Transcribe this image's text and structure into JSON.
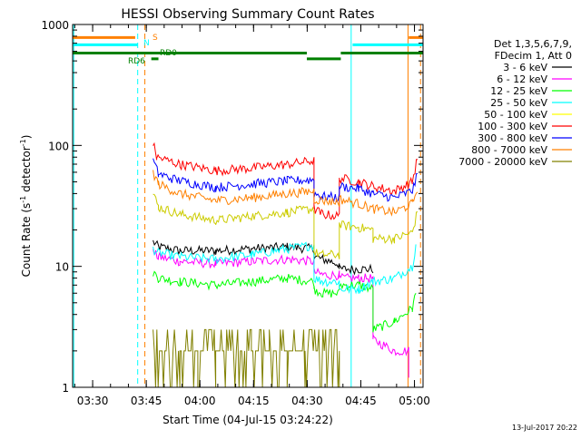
{
  "chart_data": {
    "type": "line",
    "title": "HESSI Observing Summary Count Rates",
    "xlabel": "Start Time (04-Jul-15 03:24:22)",
    "ylabel_main": "Count Rate (s",
    "ylabel_sup1": "-1",
    "ylabel_mid": " detector",
    "ylabel_sup2": "-1",
    "ylabel_end": ")",
    "footer_date": "13-Jul-2017 20:22",
    "y_scale": "log",
    "ylim": [
      1,
      1000
    ],
    "xlim_minutes": [
      0,
      98
    ],
    "x_ticks": [
      {
        "label": "03:30",
        "minute": 5.6
      },
      {
        "label": "03:45",
        "minute": 20.6
      },
      {
        "label": "04:00",
        "minute": 35.6
      },
      {
        "label": "04:15",
        "minute": 50.6
      },
      {
        "label": "04:30",
        "minute": 65.6
      },
      {
        "label": "04:45",
        "minute": 80.6
      },
      {
        "label": "05:00",
        "minute": 95.6
      }
    ],
    "y_ticks": [
      {
        "label": "1",
        "value": 1
      },
      {
        "label": "10",
        "value": 10
      },
      {
        "label": "100",
        "value": 100
      },
      {
        "label": "1000",
        "value": 1000
      }
    ],
    "legend": {
      "header": [
        "Det 1,3,5,6,7,9,",
        "FDecim 1, Att 0"
      ],
      "placement": "right"
    },
    "series": [
      {
        "name": "3 - 6 keV",
        "color": "#000000",
        "x": [
          22.5,
          24,
          30,
          40,
          50,
          60,
          67.5,
          67.5,
          70,
          72,
          74.6,
          74.6,
          80,
          84
        ],
        "y": [
          16,
          14.5,
          13.5,
          13.5,
          14,
          14.5,
          14,
          12,
          11.5,
          11,
          10.5,
          9.5,
          9.5,
          9.5
        ]
      },
      {
        "name": "6 - 12 keV",
        "color": "#ff00ff",
        "x": [
          22.5,
          24,
          30,
          40,
          50,
          60,
          67.5,
          67.5,
          70,
          74.6,
          74.6,
          80,
          84,
          84,
          90,
          94,
          94
        ],
        "y": [
          13,
          12,
          11,
          10.5,
          11,
          11.5,
          11,
          9,
          8.5,
          8.5,
          8,
          8,
          8,
          2.5,
          2,
          2,
          1.2
        ]
      },
      {
        "name": "12 - 25 keV",
        "color": "#00ff00",
        "x": [
          22.5,
          24,
          30,
          40,
          50,
          60,
          67.5,
          67.5,
          70,
          74.6,
          74.6,
          80,
          84,
          84,
          90,
          95,
          96
        ],
        "y": [
          9,
          8,
          7.5,
          7,
          7.5,
          8,
          7.5,
          6.5,
          6,
          6,
          7,
          7,
          6.5,
          3,
          3.5,
          4.5,
          6
        ]
      },
      {
        "name": "25 - 50 keV",
        "color": "#00ffff",
        "x": [
          22.5,
          24,
          30,
          40,
          50,
          60,
          67.5,
          67.5,
          70,
          74.6,
          74.6,
          80,
          84,
          90,
          95,
          96
        ],
        "y": [
          14,
          13,
          12,
          11.5,
          12.5,
          14,
          15,
          8,
          7.5,
          7.5,
          6.5,
          6.5,
          7.5,
          8,
          10,
          15
        ]
      },
      {
        "name": "50 - 100 keV",
        "color": "#ffff00",
        "draw_color": "#cccc00",
        "x": [
          22.5,
          24,
          30,
          40,
          50,
          60,
          67.5,
          67.5,
          70,
          74.6,
          74.6,
          80,
          84,
          84,
          90,
          95,
          96.5
        ],
        "y": [
          40,
          31,
          27,
          24,
          26,
          28,
          30,
          13,
          12.5,
          12.5,
          22,
          21,
          20,
          17,
          17,
          19,
          29
        ]
      },
      {
        "name": "100 - 300 keV",
        "color": "#ff0000",
        "x": [
          22.5,
          23.5,
          30,
          40,
          50,
          60,
          67.5,
          67.5,
          70,
          74.6,
          74.6,
          80,
          84,
          90,
          95,
          96.5
        ],
        "y": [
          105,
          80,
          70,
          62,
          65,
          70,
          75,
          30,
          27,
          26,
          54,
          50,
          46,
          42,
          50,
          80
        ]
      },
      {
        "name": "300 - 800 keV",
        "color": "#0000ff",
        "x": [
          22.5,
          24,
          30,
          40,
          50,
          60,
          67.5,
          67.5,
          70,
          74.6,
          74.6,
          80,
          84,
          90,
          95,
          96.5
        ],
        "y": [
          75,
          58,
          51,
          45,
          48,
          51,
          52,
          40,
          38,
          37,
          46,
          44,
          40,
          37,
          42,
          58
        ]
      },
      {
        "name": "800 - 7000 keV",
        "color": "#ff8000",
        "x": [
          22.5,
          24,
          30,
          40,
          50,
          60,
          67.5,
          67.5,
          70,
          74.6,
          74.6,
          80,
          84,
          90,
          95,
          96.5
        ],
        "y": [
          60,
          48,
          40,
          35,
          37,
          40,
          42,
          36,
          35,
          34,
          36,
          33,
          30,
          28,
          33,
          45
        ]
      },
      {
        "name": "7000 - 20000 keV",
        "color": "#808000",
        "x": [
          22.5,
          25,
          30,
          35,
          40,
          50,
          55,
          60,
          65,
          70,
          74.6,
          74.6
        ],
        "y": [
          4,
          3,
          2,
          2,
          2,
          2,
          3,
          3,
          3,
          2,
          2,
          1
        ]
      }
    ],
    "flag_bars": [
      {
        "label": "S",
        "color": "#ff8000",
        "value": 780,
        "segments": [
          [
            0,
            17.5
          ],
          [
            94,
            98
          ]
        ]
      },
      {
        "label": "N",
        "color": "#00ffff",
        "value": 680,
        "segments": [
          [
            0,
            18.2
          ],
          [
            78.3,
            98
          ]
        ]
      },
      {
        "label": "RD0",
        "color": "#008000",
        "value": 580,
        "segments": [
          [
            0,
            65.5
          ],
          [
            75,
            98
          ]
        ]
      },
      {
        "label": "RD6",
        "color": "#008000",
        "value": 520,
        "segments": [
          [
            22,
            24
          ],
          [
            65.5,
            75
          ]
        ]
      }
    ],
    "vlines": [
      {
        "minute": 0.3,
        "color": "#00ffff",
        "style": "solid"
      },
      {
        "minute": 18.2,
        "color": "#00ffff",
        "style": "dashed"
      },
      {
        "minute": 20.2,
        "color": "#ff8000",
        "style": "dashed"
      },
      {
        "minute": 77.9,
        "color": "#00ffff",
        "style": "solid"
      },
      {
        "minute": 93.8,
        "color": "#ff8000",
        "style": "solid"
      },
      {
        "minute": 97.3,
        "color": "#ff8000",
        "style": "dashed"
      }
    ]
  }
}
